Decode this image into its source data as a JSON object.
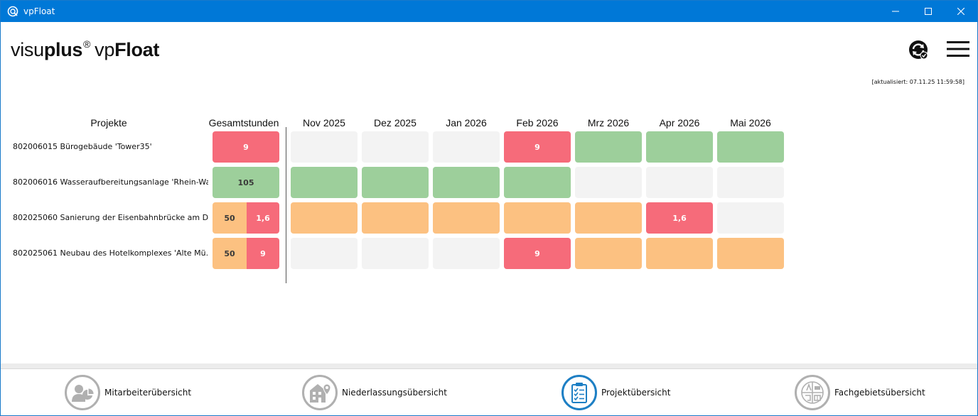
{
  "window": {
    "title": "vpFloat"
  },
  "logo": {
    "part1": "visu",
    "part2": "plus",
    "reg": "®",
    "part3": "vp",
    "part4": "Float"
  },
  "updated": "[aktualisiert: 07.11.25 11:59:58]",
  "table": {
    "headers": {
      "projects": "Projekte",
      "total": "Gesamtstunden"
    },
    "months": [
      "Nov 2025",
      "Dez 2025",
      "Jan 2026",
      "Feb 2026",
      "Mrz 2026",
      "Apr 2026",
      "Mai 2026"
    ],
    "rows": [
      {
        "name": "802006015 Bürogebäude 'Tower35'",
        "total": [
          {
            "value": "9",
            "status": "red"
          }
        ],
        "months": [
          {
            "value": "",
            "status": "empty"
          },
          {
            "value": "",
            "status": "empty"
          },
          {
            "value": "",
            "status": "empty"
          },
          {
            "value": "9",
            "status": "red"
          },
          {
            "value": "",
            "status": "green"
          },
          {
            "value": "",
            "status": "green"
          },
          {
            "value": "",
            "status": "green"
          }
        ]
      },
      {
        "name": "802006016 Wasseraufbereitungsanlage 'Rhein-Wa...",
        "total": [
          {
            "value": "105",
            "status": "green"
          }
        ],
        "months": [
          {
            "value": "",
            "status": "green"
          },
          {
            "value": "",
            "status": "green"
          },
          {
            "value": "",
            "status": "green"
          },
          {
            "value": "",
            "status": "green"
          },
          {
            "value": "",
            "status": "empty"
          },
          {
            "value": "",
            "status": "empty"
          },
          {
            "value": "",
            "status": "empty"
          }
        ]
      },
      {
        "name": "802025060 Sanierung der Eisenbahnbrücke am D...",
        "total": [
          {
            "value": "50",
            "status": "orange"
          },
          {
            "value": "1,6",
            "status": "red"
          }
        ],
        "months": [
          {
            "value": "",
            "status": "orange"
          },
          {
            "value": "",
            "status": "orange"
          },
          {
            "value": "",
            "status": "orange"
          },
          {
            "value": "",
            "status": "orange"
          },
          {
            "value": "",
            "status": "orange"
          },
          {
            "value": "1,6",
            "status": "red"
          },
          {
            "value": "",
            "status": "empty"
          }
        ]
      },
      {
        "name": "802025061 Neubau des Hotelkomplexes 'Alte Mü...",
        "total": [
          {
            "value": "50",
            "status": "orange"
          },
          {
            "value": "9",
            "status": "red"
          }
        ],
        "months": [
          {
            "value": "",
            "status": "empty"
          },
          {
            "value": "",
            "status": "empty"
          },
          {
            "value": "",
            "status": "empty"
          },
          {
            "value": "9",
            "status": "red"
          },
          {
            "value": "",
            "status": "orange"
          },
          {
            "value": "",
            "status": "orange"
          },
          {
            "value": "",
            "status": "orange"
          }
        ]
      }
    ]
  },
  "colors": {
    "red": "#f66b7a",
    "green": "#9dcf9b",
    "orange": "#fcc181",
    "empty": "#f3f3f3",
    "accent": "#1d7fc4",
    "titlebar": "#0078d7"
  },
  "nav": [
    {
      "label": "Mitarbeiterübersicht",
      "icon": "employee-chart-icon",
      "active": false
    },
    {
      "label": "Niederlassungsübersicht",
      "icon": "building-location-icon",
      "active": false
    },
    {
      "label": "Projektübersicht",
      "icon": "clipboard-checklist-icon",
      "active": true
    },
    {
      "label": "Fachgebietsübersicht",
      "icon": "disciplines-icon",
      "active": false
    }
  ]
}
